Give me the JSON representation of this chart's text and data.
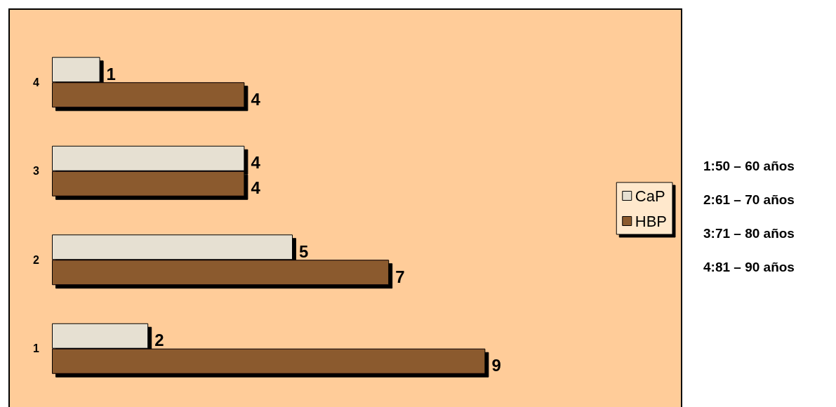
{
  "chart_data": {
    "type": "bar",
    "orientation": "horizontal",
    "categories": [
      "4",
      "3",
      "2",
      "1"
    ],
    "series": [
      {
        "name": "CaP",
        "color": "#e6e0d2",
        "values": [
          1,
          4,
          5,
          2
        ]
      },
      {
        "name": "HBP",
        "color": "#8b5a2e",
        "values": [
          4,
          4,
          7,
          9
        ]
      }
    ],
    "data_labels": true,
    "legend": "right",
    "annotations": [
      "1:50 – 60 años",
      "2:61 – 70 años",
      "3:71 – 80 años",
      "4:81 – 90 años"
    ]
  }
}
